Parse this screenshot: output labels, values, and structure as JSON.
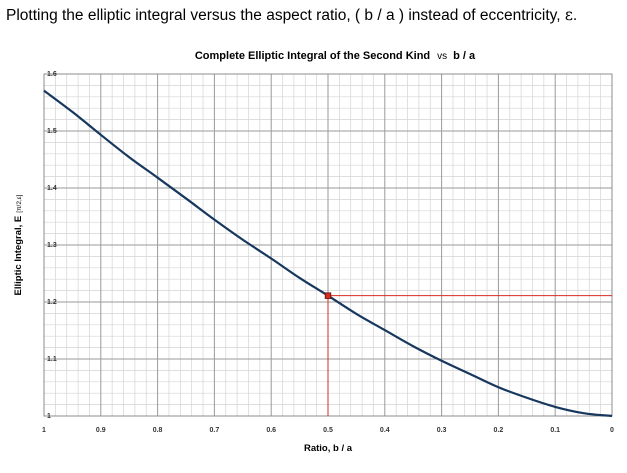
{
  "caption": {
    "text_before": "Plotting the elliptic integral versus the aspect ratio, ( b / a ) instead of eccentricity, ",
    "epsilon": "ε",
    "text_after": "."
  },
  "chart_data": {
    "type": "line",
    "title": "Complete Elliptic Integral of the Second Kind",
    "title_vs": "vs",
    "title_tail": "b / a",
    "xlabel": "Ratio,  b / a",
    "ylabel": "Elliptic Integral,  E",
    "ylabel_sub": "[π/2,ε]",
    "x_reversed": true,
    "xlim": [
      1,
      0
    ],
    "ylim": [
      1.0,
      1.6
    ],
    "x_ticks": [
      "1",
      "0.9",
      "0.8",
      "0.7",
      "0.6",
      "0.5",
      "0.4",
      "0.3",
      "0.2",
      "0.1",
      "0"
    ],
    "y_ticks": [
      "1.6",
      "1.5",
      "1.4",
      "1.3",
      "1.2",
      "1.1",
      "1"
    ],
    "grid": true,
    "series": [
      {
        "color": "#17375e",
        "x": [
          1.0,
          0.95,
          0.9,
          0.85,
          0.8,
          0.75,
          0.7,
          0.65,
          0.6,
          0.55,
          0.5,
          0.45,
          0.4,
          0.35,
          0.3,
          0.25,
          0.2,
          0.15,
          0.1,
          0.05,
          0.0
        ],
        "y": [
          1.5708,
          1.5335,
          1.4933,
          1.454,
          1.4181,
          1.3817,
          1.3445,
          1.3092,
          1.2763,
          1.2422,
          1.2111,
          1.1791,
          1.1507,
          1.1224,
          1.0969,
          1.0737,
          1.0505,
          1.032,
          1.016,
          1.005,
          1.0
        ]
      }
    ],
    "marker": {
      "x": 0.5,
      "y": 1.2111,
      "color": "#d62d20"
    }
  }
}
